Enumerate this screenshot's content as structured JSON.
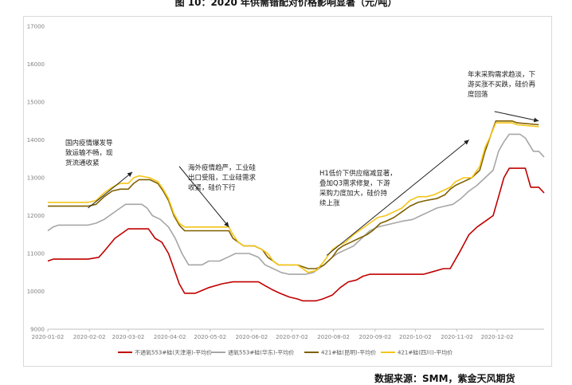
{
  "header": {
    "title": "图 10：2020 年供需错配对价格影响显著（元/吨）",
    "source": "数据来源：SMM，紫金天风期货"
  },
  "chart_data": {
    "type": "line",
    "ylim": [
      9000,
      17000
    ],
    "yticks": [
      "9000",
      "10000",
      "11000",
      "12000",
      "13000",
      "14000",
      "15000",
      "16000",
      "17000"
    ],
    "xticks": [
      "2020-01-02",
      "2020-02-02",
      "2020-03-02",
      "2020-04-02",
      "2020-05-02",
      "2020-06-02",
      "2020-07-02",
      "2020-08-02",
      "2020-09-02",
      "2020-10-02",
      "2020-11-02",
      "2020-12-02"
    ],
    "x_day_range": [
      0,
      370
    ],
    "grid": false,
    "legend_position": "bottom",
    "series": [
      {
        "name": "不通氧553#硅(天津港)-平均价",
        "color": "#c00000",
        "points": [
          [
            0,
            10800
          ],
          [
            4,
            10850
          ],
          [
            30,
            10850
          ],
          [
            38,
            10900
          ],
          [
            43,
            11100
          ],
          [
            50,
            11400
          ],
          [
            56,
            11550
          ],
          [
            60,
            11650
          ],
          [
            75,
            11650
          ],
          [
            80,
            11400
          ],
          [
            85,
            11300
          ],
          [
            90,
            11000
          ],
          [
            95,
            10500
          ],
          [
            98,
            10200
          ],
          [
            102,
            9950
          ],
          [
            110,
            9950
          ],
          [
            120,
            10100
          ],
          [
            130,
            10200
          ],
          [
            138,
            10250
          ],
          [
            150,
            10250
          ],
          [
            157,
            10250
          ],
          [
            162,
            10150
          ],
          [
            167,
            10050
          ],
          [
            173,
            9950
          ],
          [
            180,
            9850
          ],
          [
            186,
            9800
          ],
          [
            190,
            9750
          ],
          [
            200,
            9750
          ],
          [
            205,
            9800
          ],
          [
            212,
            9900
          ],
          [
            218,
            10100
          ],
          [
            224,
            10250
          ],
          [
            230,
            10300
          ],
          [
            235,
            10400
          ],
          [
            240,
            10450
          ],
          [
            280,
            10450
          ],
          [
            285,
            10500
          ],
          [
            295,
            10600
          ],
          [
            300,
            10600
          ],
          [
            308,
            11100
          ],
          [
            314,
            11500
          ],
          [
            320,
            11700
          ],
          [
            328,
            11900
          ],
          [
            332,
            12000
          ],
          [
            336,
            12500
          ],
          [
            340,
            13000
          ],
          [
            344,
            13250
          ],
          [
            356,
            13250
          ],
          [
            360,
            12750
          ],
          [
            366,
            12750
          ],
          [
            370,
            12600
          ]
        ]
      },
      {
        "name": "通氧553#硅(华东)-平均价",
        "color": "#a6a6a6",
        "points": [
          [
            0,
            11600
          ],
          [
            4,
            11700
          ],
          [
            8,
            11750
          ],
          [
            30,
            11750
          ],
          [
            36,
            11800
          ],
          [
            42,
            11900
          ],
          [
            48,
            12050
          ],
          [
            54,
            12200
          ],
          [
            58,
            12300
          ],
          [
            70,
            12300
          ],
          [
            74,
            12200
          ],
          [
            78,
            12000
          ],
          [
            84,
            11900
          ],
          [
            90,
            11700
          ],
          [
            95,
            11400
          ],
          [
            100,
            11000
          ],
          [
            105,
            10700
          ],
          [
            115,
            10700
          ],
          [
            120,
            10800
          ],
          [
            128,
            10800
          ],
          [
            134,
            10900
          ],
          [
            140,
            11000
          ],
          [
            150,
            11000
          ],
          [
            157,
            10900
          ],
          [
            162,
            10700
          ],
          [
            168,
            10600
          ],
          [
            174,
            10500
          ],
          [
            180,
            10450
          ],
          [
            192,
            10450
          ],
          [
            198,
            10500
          ],
          [
            206,
            10700
          ],
          [
            212,
            10900
          ],
          [
            216,
            11000
          ],
          [
            222,
            11100
          ],
          [
            228,
            11200
          ],
          [
            234,
            11400
          ],
          [
            240,
            11600
          ],
          [
            246,
            11700
          ],
          [
            252,
            11750
          ],
          [
            258,
            11800
          ],
          [
            264,
            11850
          ],
          [
            272,
            11900
          ],
          [
            278,
            12000
          ],
          [
            284,
            12100
          ],
          [
            290,
            12200
          ],
          [
            296,
            12250
          ],
          [
            302,
            12300
          ],
          [
            308,
            12450
          ],
          [
            314,
            12650
          ],
          [
            320,
            12800
          ],
          [
            326,
            13000
          ],
          [
            332,
            13200
          ],
          [
            336,
            13700
          ],
          [
            340,
            13950
          ],
          [
            344,
            14150
          ],
          [
            352,
            14150
          ],
          [
            356,
            14050
          ],
          [
            362,
            13700
          ],
          [
            366,
            13700
          ],
          [
            370,
            13550
          ]
        ]
      },
      {
        "name": "421#硅(昆明)-平均价",
        "color": "#7f6000",
        "points": [
          [
            0,
            12250
          ],
          [
            30,
            12250
          ],
          [
            36,
            12300
          ],
          [
            42,
            12500
          ],
          [
            48,
            12650
          ],
          [
            54,
            12700
          ],
          [
            60,
            12700
          ],
          [
            64,
            12850
          ],
          [
            68,
            12950
          ],
          [
            76,
            12950
          ],
          [
            82,
            12850
          ],
          [
            86,
            12650
          ],
          [
            90,
            12400
          ],
          [
            94,
            12000
          ],
          [
            98,
            11750
          ],
          [
            102,
            11600
          ],
          [
            112,
            11600
          ],
          [
            130,
            11600
          ],
          [
            135,
            11600
          ],
          [
            138,
            11400
          ],
          [
            142,
            11300
          ],
          [
            146,
            11200
          ],
          [
            154,
            11200
          ],
          [
            160,
            11100
          ],
          [
            164,
            10900
          ],
          [
            168,
            10800
          ],
          [
            172,
            10700
          ],
          [
            186,
            10700
          ],
          [
            190,
            10650
          ],
          [
            194,
            10600
          ],
          [
            200,
            10600
          ],
          [
            206,
            10700
          ],
          [
            212,
            10900
          ],
          [
            216,
            11100
          ],
          [
            220,
            11200
          ],
          [
            226,
            11300
          ],
          [
            232,
            11400
          ],
          [
            238,
            11500
          ],
          [
            242,
            11600
          ],
          [
            248,
            11800
          ],
          [
            252,
            11850
          ],
          [
            258,
            11950
          ],
          [
            264,
            12100
          ],
          [
            270,
            12250
          ],
          [
            276,
            12350
          ],
          [
            282,
            12400
          ],
          [
            290,
            12450
          ],
          [
            296,
            12550
          ],
          [
            300,
            12700
          ],
          [
            304,
            12800
          ],
          [
            310,
            12900
          ],
          [
            316,
            13000
          ],
          [
            322,
            13200
          ],
          [
            326,
            13700
          ],
          [
            330,
            14100
          ],
          [
            334,
            14500
          ],
          [
            346,
            14500
          ],
          [
            350,
            14450
          ],
          [
            366,
            14400
          ]
        ]
      },
      {
        "name": "421#硅(四川)-平均价",
        "color": "#f5c518",
        "points": [
          [
            0,
            12350
          ],
          [
            30,
            12350
          ],
          [
            36,
            12400
          ],
          [
            42,
            12600
          ],
          [
            48,
            12750
          ],
          [
            54,
            12850
          ],
          [
            60,
            12850
          ],
          [
            64,
            13000
          ],
          [
            68,
            13050
          ],
          [
            76,
            13000
          ],
          [
            82,
            12900
          ],
          [
            86,
            12700
          ],
          [
            90,
            12450
          ],
          [
            94,
            12050
          ],
          [
            98,
            11800
          ],
          [
            102,
            11700
          ],
          [
            130,
            11700
          ],
          [
            135,
            11700
          ],
          [
            138,
            11500
          ],
          [
            142,
            11300
          ],
          [
            146,
            11200
          ],
          [
            154,
            11200
          ],
          [
            160,
            11100
          ],
          [
            164,
            11000
          ],
          [
            168,
            10800
          ],
          [
            172,
            10700
          ],
          [
            186,
            10700
          ],
          [
            190,
            10600
          ],
          [
            194,
            10500
          ],
          [
            200,
            10550
          ],
          [
            206,
            10800
          ],
          [
            212,
            11100
          ],
          [
            216,
            11200
          ],
          [
            222,
            11300
          ],
          [
            228,
            11500
          ],
          [
            234,
            11650
          ],
          [
            240,
            11800
          ],
          [
            246,
            11950
          ],
          [
            252,
            12000
          ],
          [
            258,
            12100
          ],
          [
            264,
            12200
          ],
          [
            270,
            12400
          ],
          [
            276,
            12500
          ],
          [
            282,
            12500
          ],
          [
            288,
            12550
          ],
          [
            294,
            12650
          ],
          [
            300,
            12750
          ],
          [
            304,
            12900
          ],
          [
            310,
            13000
          ],
          [
            316,
            13000
          ],
          [
            322,
            13300
          ],
          [
            326,
            13800
          ],
          [
            330,
            14100
          ],
          [
            334,
            14450
          ],
          [
            346,
            14450
          ],
          [
            350,
            14400
          ],
          [
            366,
            14350
          ]
        ]
      }
    ],
    "annotations": [
      {
        "lines": [
          "国内疫情爆发导",
          "致运输不畅，现",
          "货流通收紧"
        ]
      },
      {
        "lines": [
          "海外疫情趋严，工业硅",
          "出口受阻，工业硅需求",
          "收紧，硅价下行"
        ]
      },
      {
        "lines": [
          "H1低价下供应缩减显著，",
          "叠加Q3需求修复，下游",
          "采购力度加大，硅价持",
          "续上涨"
        ]
      },
      {
        "lines": [
          "年末采购需求趋淡，下",
          "游买涨不买跌，硅价再",
          "度回落"
        ]
      }
    ]
  }
}
